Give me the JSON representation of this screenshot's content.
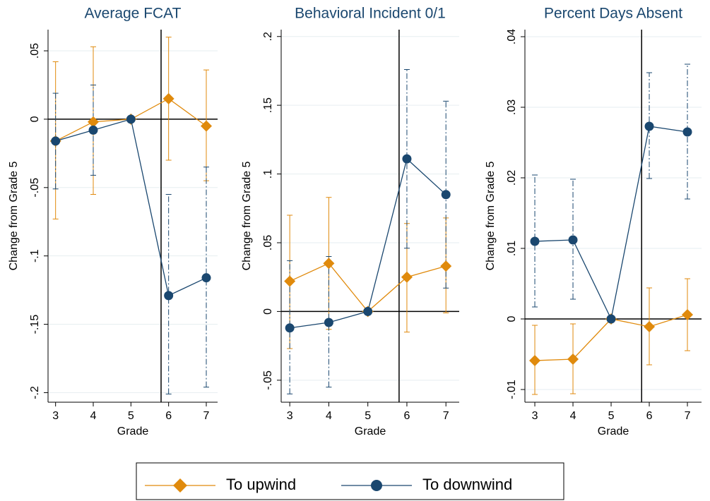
{
  "chart_data": [
    {
      "type": "line",
      "title": "Average FCAT",
      "ylabel": "Change from Grade 5",
      "xlabel": "Grade",
      "x": [
        3,
        4,
        5,
        6,
        7
      ],
      "xlim": [
        2.8,
        7.3
      ],
      "xticks": [
        3,
        4,
        5,
        6,
        7
      ],
      "ylim": [
        -0.207,
        0.0655
      ],
      "yticks": [
        {
          "value": 0.05,
          "label": ".05"
        },
        0,
        {
          "value": -0.05,
          "label": "-.05"
        },
        {
          "value": -0.1,
          "label": "-.1"
        },
        {
          "value": -0.15,
          "label": "-.15"
        },
        {
          "value": -0.2,
          "label": "-.2"
        }
      ],
      "grid": true,
      "hline": 0,
      "vline": 5.8,
      "series": [
        {
          "name": "To upwind",
          "color": "#e08a0c",
          "marker": "diamond",
          "error_dash": "solid",
          "values": [
            -0.016,
            -0.002,
            0,
            0.015,
            -0.005
          ],
          "lower": [
            -0.073,
            -0.055,
            0,
            -0.03,
            -0.045
          ],
          "upper": [
            0.042,
            0.053,
            0,
            0.06,
            0.036
          ]
        },
        {
          "name": "To downwind",
          "color": "#1a476f",
          "marker": "circle",
          "error_dash": "dashdot",
          "values": [
            -0.016,
            -0.008,
            0,
            -0.129,
            -0.116
          ],
          "lower": [
            -0.051,
            -0.041,
            0,
            -0.201,
            -0.196
          ],
          "upper": [
            0.019,
            0.025,
            0,
            -0.055,
            -0.035
          ]
        }
      ]
    },
    {
      "type": "line",
      "title": "Behavioral Incident 0/1",
      "ylabel": "Change from Grade 5",
      "xlabel": "Grade",
      "x": [
        3,
        4,
        5,
        6,
        7
      ],
      "xlim": [
        2.78,
        7.34
      ],
      "xticks": [
        3,
        4,
        5,
        6,
        7
      ],
      "ylim": [
        -0.066,
        0.205
      ],
      "yticks": [
        {
          "value": 0.2,
          "label": ".2"
        },
        {
          "value": 0.15,
          "label": ".15"
        },
        {
          "value": 0.1,
          "label": ".1"
        },
        {
          "value": 0.05,
          "label": ".05"
        },
        0,
        {
          "value": -0.05,
          "label": "-.05"
        }
      ],
      "grid": true,
      "hline": 0,
      "vline": 5.8,
      "series": [
        {
          "color": "#e08a0c",
          "marker": "diamond",
          "error_dash": "solid",
          "values": [
            0.022,
            0.035,
            0,
            0.025,
            0.033
          ],
          "lower": [
            -0.027,
            -0.013,
            0,
            -0.015,
            -0.001
          ],
          "upper": [
            0.07,
            0.083,
            0,
            0.064,
            0.068
          ]
        },
        {
          "color": "#1a476f",
          "marker": "circle",
          "error_dash": "dashdot",
          "values": [
            -0.012,
            -0.008,
            0,
            0.111,
            0.085
          ],
          "lower": [
            -0.06,
            -0.055,
            0,
            0.046,
            0.017
          ],
          "upper": [
            0.037,
            0.04,
            0,
            0.176,
            0.153
          ]
        }
      ]
    },
    {
      "type": "line",
      "title": "Percent Days Absent",
      "ylabel": "Change from Grade 5",
      "xlabel": "Grade",
      "x": [
        3,
        4,
        5,
        6,
        7
      ],
      "xlim": [
        2.74,
        7.37
      ],
      "xticks": [
        3,
        4,
        5,
        6,
        7
      ],
      "ylim": [
        -0.0118,
        0.041
      ],
      "yticks": [
        {
          "value": 0.04,
          "label": ".04"
        },
        {
          "value": 0.03,
          "label": ".03"
        },
        {
          "value": 0.02,
          "label": ".02"
        },
        {
          "value": 0.01,
          "label": ".01"
        },
        0,
        {
          "value": -0.01,
          "label": "-.01"
        }
      ],
      "grid": true,
      "hline": 0,
      "vline": 5.8,
      "series": [
        {
          "color": "#e08a0c",
          "marker": "diamond",
          "error_dash": "solid",
          "values": [
            -0.0059,
            -0.0057,
            0,
            -0.0011,
            0.0006
          ],
          "lower": [
            -0.0107,
            -0.0106,
            0,
            -0.0065,
            -0.0045
          ],
          "upper": [
            -0.0009,
            -0.0007,
            0,
            0.0044,
            0.0057
          ]
        },
        {
          "color": "#1a476f",
          "marker": "circle",
          "error_dash": "dashdot",
          "values": [
            0.011,
            0.0112,
            0,
            0.0273,
            0.0265
          ],
          "lower": [
            0.0017,
            0.0028,
            0,
            0.0199,
            0.017
          ],
          "upper": [
            0.0204,
            0.0198,
            0,
            0.0349,
            0.0361
          ]
        }
      ]
    }
  ]
}
